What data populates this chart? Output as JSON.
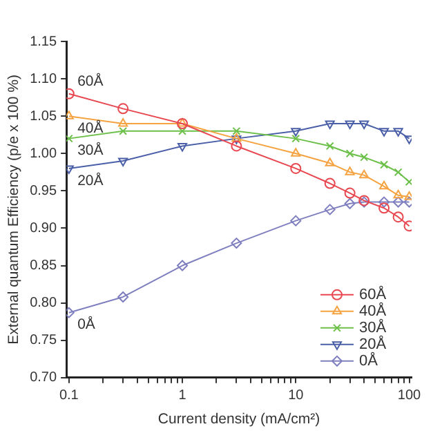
{
  "chart_data": {
    "type": "line",
    "xlabel": "Current density (mA/cm²)",
    "ylabel": "External quantum Efficiency (p/e x 100 %)",
    "x": [
      0.1,
      0.3,
      1,
      3,
      10,
      20,
      30,
      40,
      60,
      80,
      100
    ],
    "series": [
      {
        "name": "60Å",
        "color": "#e8474f",
        "marker": "circle",
        "values": [
          1.08,
          1.06,
          1.04,
          1.01,
          0.98,
          0.96,
          0.947,
          0.937,
          0.927,
          0.915,
          0.903
        ]
      },
      {
        "name": "40Å",
        "color": "#f5a341",
        "marker": "triangle",
        "values": [
          1.05,
          1.04,
          1.04,
          1.02,
          1.0,
          0.987,
          0.975,
          0.971,
          0.956,
          0.944,
          0.942
        ]
      },
      {
        "name": "30Å",
        "color": "#6cc04a",
        "marker": "cross",
        "values": [
          1.02,
          1.03,
          1.03,
          1.03,
          1.02,
          1.01,
          1.0,
          0.995,
          0.985,
          0.975,
          0.962
        ]
      },
      {
        "name": "20Å",
        "color": "#4a5fa8",
        "marker": "triangle_down",
        "values": [
          0.98,
          0.99,
          1.01,
          1.02,
          1.03,
          1.04,
          1.04,
          1.04,
          1.03,
          1.03,
          1.02
        ]
      },
      {
        "name": "0Å",
        "color": "#7f7fc0",
        "marker": "diamond",
        "values": [
          0.787,
          0.808,
          0.85,
          0.88,
          0.91,
          0.925,
          0.933,
          0.935,
          0.935,
          0.935,
          0.935
        ]
      }
    ],
    "log": "x",
    "xlim": [
      0.095,
      105
    ],
    "xticks": [
      0.1,
      {
        "value": 0.2,
        "label": null
      },
      {
        "value": 0.3,
        "label": null
      },
      {
        "value": 0.4,
        "label": null
      },
      {
        "value": 0.5,
        "label": null
      },
      {
        "value": 0.6,
        "label": null
      },
      {
        "value": 0.7,
        "label": null
      },
      {
        "value": 0.8,
        "label": null
      },
      {
        "value": 0.9,
        "label": null
      },
      1,
      {
        "value": 2,
        "label": null
      },
      {
        "value": 3,
        "label": null
      },
      {
        "value": 4,
        "label": null
      },
      {
        "value": 5,
        "label": null
      },
      {
        "value": 6,
        "label": null
      },
      {
        "value": 7,
        "label": null
      },
      {
        "value": 8,
        "label": null
      },
      {
        "value": 9,
        "label": null
      },
      10,
      {
        "value": 20,
        "label": null
      },
      {
        "value": 30,
        "label": null
      },
      {
        "value": 40,
        "label": null
      },
      {
        "value": 50,
        "label": null
      },
      {
        "value": 60,
        "label": null
      },
      {
        "value": 70,
        "label": null
      },
      {
        "value": 80,
        "label": null
      },
      {
        "value": 90,
        "label": null
      },
      100
    ],
    "ylim": [
      0.7,
      1.15
    ],
    "yticks": [
      {
        "value": 0.7,
        "label": "0.70"
      },
      0.75,
      {
        "value": 0.8,
        "label": "0.80"
      },
      0.85,
      {
        "value": 0.9,
        "label": "0.90"
      },
      0.95,
      {
        "value": 1.0,
        "label": "1.00"
      },
      1.05,
      {
        "value": 1.1,
        "label": "1.10"
      },
      1.15
    ],
    "annotations": [
      "60Å",
      "40Å",
      "30Å",
      "20Å",
      "0Å"
    ],
    "legend": "bottom right",
    "grid": false
  }
}
